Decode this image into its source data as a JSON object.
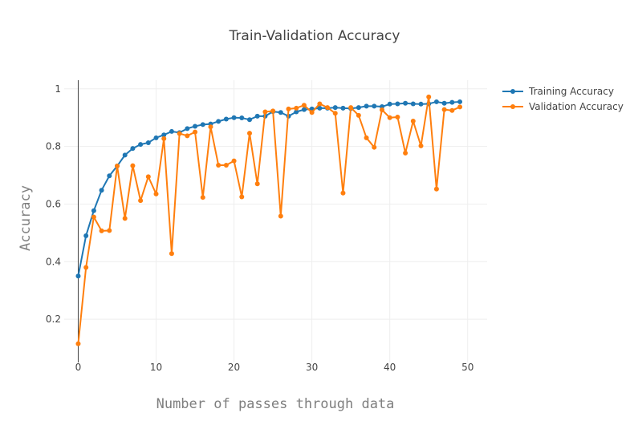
{
  "chart_data": {
    "type": "line",
    "title": "Train-Validation Accuracy",
    "xlabel": "Number of passes through data",
    "ylabel": "Accuracy",
    "xlim": [
      -1.8,
      52.5
    ],
    "ylim": [
      0.05,
      1.03
    ],
    "x_ticks": [
      0,
      10,
      20,
      30,
      40,
      50
    ],
    "y_ticks": [
      0.2,
      0.4,
      0.6,
      0.8,
      1
    ],
    "y_tick_labels": [
      "0.2",
      "0.4",
      "0.6",
      "0.8",
      "1"
    ],
    "grid": true,
    "legend_position": "top-right",
    "x": [
      0,
      1,
      2,
      3,
      4,
      5,
      6,
      7,
      8,
      9,
      10,
      11,
      12,
      13,
      14,
      15,
      16,
      17,
      18,
      19,
      20,
      21,
      22,
      23,
      24,
      25,
      26,
      27,
      28,
      29,
      30,
      31,
      32,
      33,
      34,
      35,
      36,
      37,
      38,
      39,
      40,
      41,
      42,
      43,
      44,
      45,
      46,
      47,
      48,
      49
    ],
    "series": [
      {
        "name": "Training Accuracy",
        "color": "#1f77b4",
        "values": [
          0.35,
          0.49,
          0.577,
          0.648,
          0.698,
          0.732,
          0.77,
          0.793,
          0.807,
          0.813,
          0.83,
          0.84,
          0.852,
          0.848,
          0.862,
          0.87,
          0.876,
          0.878,
          0.887,
          0.895,
          0.9,
          0.899,
          0.893,
          0.905,
          0.905,
          0.921,
          0.918,
          0.905,
          0.92,
          0.928,
          0.93,
          0.933,
          0.933,
          0.935,
          0.933,
          0.932,
          0.935,
          0.94,
          0.94,
          0.938,
          0.947,
          0.948,
          0.95,
          0.948,
          0.947,
          0.948,
          0.955,
          0.95,
          0.953,
          0.955
        ]
      },
      {
        "name": "Validation Accuracy",
        "color": "#ff7f0e",
        "values": [
          0.115,
          0.38,
          0.555,
          0.507,
          0.508,
          0.732,
          0.55,
          0.733,
          0.612,
          0.695,
          0.635,
          0.827,
          0.428,
          0.845,
          0.837,
          0.85,
          0.623,
          0.868,
          0.735,
          0.735,
          0.75,
          0.625,
          0.846,
          0.67,
          0.92,
          0.923,
          0.558,
          0.93,
          0.933,
          0.943,
          0.918,
          0.948,
          0.935,
          0.915,
          0.638,
          0.935,
          0.908,
          0.83,
          0.797,
          0.927,
          0.9,
          0.902,
          0.777,
          0.888,
          0.802,
          0.972,
          0.652,
          0.928,
          0.925,
          0.937
        ]
      }
    ]
  }
}
